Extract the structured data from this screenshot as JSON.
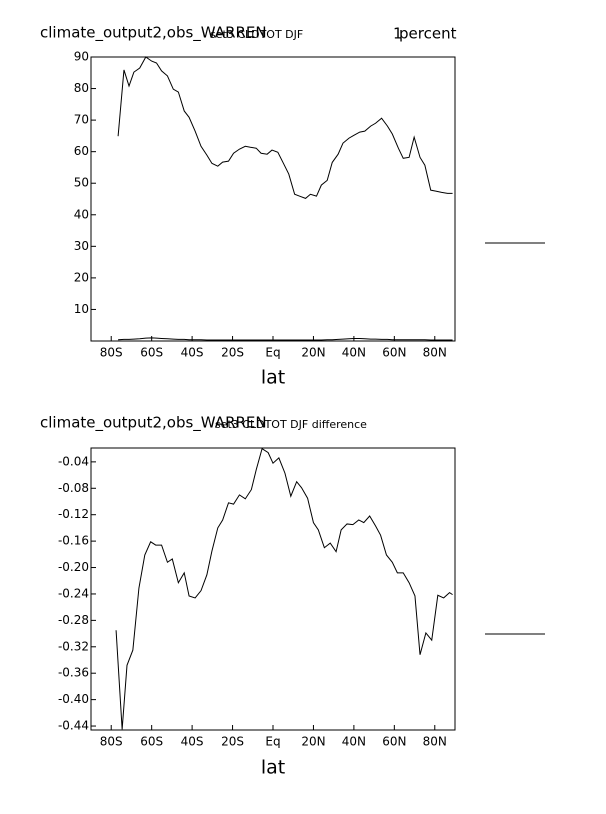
{
  "chart_data": [
    {
      "type": "line",
      "title": "climate_output2,obs_WARREN",
      "subtitle": "set3 CLDTOT DJF",
      "annotation": "1",
      "units": "percent",
      "x_label": "lat",
      "x": [
        -76.6,
        -73.7,
        -71.2,
        -68.8,
        -65.9,
        -62.9,
        -60,
        -57.6,
        -55.1,
        -52.2,
        -49.3,
        -46.8,
        -43.9,
        -41.5,
        -38.5,
        -35.6,
        -32.7,
        -30.2,
        -27.3,
        -24.9,
        -22,
        -19.5,
        -16.6,
        -13.7,
        -11.2,
        -8.3,
        -5.9,
        -2.9,
        -0.5,
        2.4,
        5.4,
        7.8,
        10.7,
        13.2,
        16.1,
        18.5,
        21.5,
        23.9,
        26.8,
        29.3,
        32.2,
        34.6,
        37.6,
        40,
        42.9,
        45.4,
        48.3,
        50.7,
        53.7,
        56.6,
        59,
        62,
        64.4,
        67.3,
        69.8,
        72.7,
        75.1,
        78,
        80.5,
        83.4,
        86.3,
        88.8
      ],
      "series": [
        {
          "color": "#000000",
          "values": [
            64.9,
            85.9,
            80.8,
            85.2,
            86.5,
            90,
            88.7,
            88.1,
            85.6,
            84,
            79.8,
            78.9,
            72.9,
            70.9,
            66.5,
            61.7,
            58.9,
            56.3,
            55.4,
            56.7,
            57,
            59.5,
            60.8,
            61.7,
            61.4,
            61.1,
            59.5,
            59.2,
            60.5,
            59.8,
            56,
            52.9,
            46.5,
            45.9,
            45.2,
            46.5,
            45.9,
            49.4,
            50.9,
            56.6,
            59.2,
            62.7,
            64.3,
            65.2,
            66.2,
            66.5,
            68.1,
            69,
            70.6,
            68.1,
            65.6,
            61.1,
            57.9,
            58.2,
            64.6,
            58.2,
            55.7,
            47.8,
            47.5,
            47.1,
            46.8,
            46.8
          ]
        },
        {
          "color": "#000000",
          "values": [
            0.4,
            0.5,
            0.5,
            0.6,
            0.7,
            0.9,
            1,
            0.9,
            0.8,
            0.7,
            0.6,
            0.5,
            0.5,
            0.4,
            0.4,
            0.4,
            0.3,
            0.3,
            0.3,
            0.3,
            0.3,
            0.3,
            0.3,
            0.3,
            0.3,
            0.3,
            0.3,
            0.3,
            0.3,
            0.3,
            0.3,
            0.3,
            0.3,
            0.3,
            0.3,
            0.3,
            0.3,
            0.3,
            0.4,
            0.4,
            0.5,
            0.6,
            0.7,
            0.8,
            0.8,
            0.7,
            0.6,
            0.6,
            0.5,
            0.5,
            0.4,
            0.4,
            0.4,
            0.4,
            0.4,
            0.4,
            0.4,
            0.3,
            0.3,
            0.3,
            0.3,
            0.3
          ]
        }
      ],
      "xlim": [
        -90,
        90
      ],
      "ylim": [
        0,
        90
      ],
      "xticks": [
        {
          "value": -80,
          "label": "80S"
        },
        {
          "value": -60,
          "label": "60S"
        },
        {
          "value": -40,
          "label": "40S"
        },
        {
          "value": -20,
          "label": "20S"
        },
        {
          "value": 0,
          "label": "Eq"
        },
        {
          "value": 20,
          "label": "20N"
        },
        {
          "value": 40,
          "label": "40N"
        },
        {
          "value": 60,
          "label": "60N"
        },
        {
          "value": 80,
          "label": "80N"
        }
      ],
      "yticks": [
        10,
        20,
        30,
        40,
        50,
        60,
        70,
        80,
        90
      ]
    },
    {
      "type": "line",
      "title": "climate_output2,obs_WARREN",
      "subtitle": "set3 CLDTOT DJF difference",
      "x_label": "lat",
      "x": [
        -77.6,
        -74.6,
        -72.2,
        -69.3,
        -66.3,
        -63.4,
        -60.5,
        -58,
        -55.1,
        -52.2,
        -49.8,
        -46.8,
        -43.9,
        -41.5,
        -38.5,
        -35.6,
        -32.7,
        -30.2,
        -27.3,
        -24.9,
        -22,
        -19.5,
        -16.6,
        -13.7,
        -10.7,
        -8.3,
        -5.4,
        -2.4,
        0,
        2.9,
        5.9,
        8.8,
        11.7,
        14.1,
        17.1,
        20,
        22.4,
        25.4,
        28.3,
        31.2,
        33.7,
        36.6,
        39.5,
        42.4,
        44.9,
        47.8,
        50.7,
        53.2,
        56.1,
        59,
        61.5,
        64.4,
        67.3,
        70.2,
        72.7,
        75.6,
        78.5,
        81.5,
        84.4,
        87.3,
        88.8
      ],
      "series": [
        {
          "color": "#000000",
          "values": [
            -0.295,
            -0.445,
            -0.348,
            -0.325,
            -0.231,
            -0.181,
            -0.161,
            -0.166,
            -0.166,
            -0.192,
            -0.187,
            -0.223,
            -0.208,
            -0.243,
            -0.246,
            -0.235,
            -0.211,
            -0.175,
            -0.14,
            -0.128,
            -0.102,
            -0.104,
            -0.09,
            -0.096,
            -0.082,
            -0.052,
            -0.02,
            -0.026,
            -0.042,
            -0.034,
            -0.057,
            -0.092,
            -0.07,
            -0.079,
            -0.095,
            -0.132,
            -0.143,
            -0.17,
            -0.163,
            -0.176,
            -0.143,
            -0.134,
            -0.135,
            -0.128,
            -0.132,
            -0.122,
            -0.137,
            -0.151,
            -0.181,
            -0.192,
            -0.208,
            -0.208,
            -0.223,
            -0.243,
            -0.332,
            -0.299,
            -0.31,
            -0.242,
            -0.246,
            -0.238,
            -0.241
          ]
        }
      ],
      "xlim": [
        -90,
        90
      ],
      "ylim": [
        -0.446,
        -0.019
      ],
      "xticks": [
        {
          "value": -80,
          "label": "80S"
        },
        {
          "value": -60,
          "label": "60S"
        },
        {
          "value": -40,
          "label": "40S"
        },
        {
          "value": -20,
          "label": "20S"
        },
        {
          "value": 0,
          "label": "Eq"
        },
        {
          "value": 20,
          "label": "20N"
        },
        {
          "value": 40,
          "label": "40N"
        },
        {
          "value": 60,
          "label": "60N"
        },
        {
          "value": 80,
          "label": "80N"
        }
      ],
      "yticks": [
        -0.04,
        -0.08,
        -0.12,
        -0.16,
        {
          "value": -0.2,
          "label": "-0.20"
        },
        -0.24,
        -0.28,
        -0.32,
        -0.36,
        {
          "value": -0.4,
          "label": "-0.40"
        },
        -0.44
      ]
    }
  ]
}
